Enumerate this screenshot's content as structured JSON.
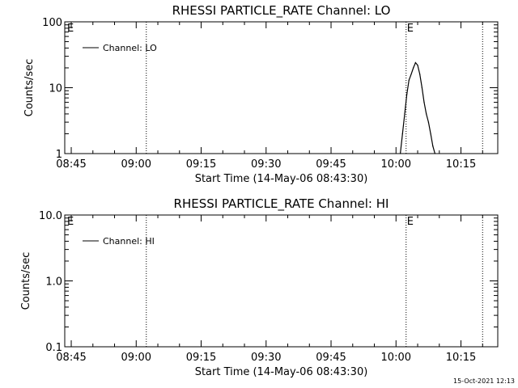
{
  "timestamp": "15-Oct-2021 12:13",
  "chart_data": [
    {
      "type": "line",
      "title": "RHESSI PARTICLE_RATE Channel: LO",
      "xlabel": "Start Time (14-May-06 08:43:30)",
      "ylabel": "Counts/sec",
      "y_scale": "log",
      "ylim": [
        1,
        100
      ],
      "yticks": [
        1,
        10,
        100
      ],
      "ytick_labels": [
        "1",
        "10",
        "100"
      ],
      "xlim": [
        "08:43:30",
        "10:23:30"
      ],
      "xticks": [
        "08:45",
        "09:00",
        "09:15",
        "09:30",
        "09:45",
        "10:00",
        "10:15"
      ],
      "xtick_labels": [
        "08:45",
        "09:00",
        "09:15",
        "09:30",
        "09:45",
        "10:00",
        "10:15"
      ],
      "grid": false,
      "legend": "top-left",
      "series": [
        {
          "name": "Channel: LO",
          "color": "#000000",
          "x": [
            "10:01:00",
            "10:01:30",
            "10:02:00",
            "10:02:30",
            "10:03:00",
            "10:03:30",
            "10:04:00",
            "10:04:30",
            "10:05:00",
            "10:05:30",
            "10:06:00",
            "10:06:30",
            "10:07:00",
            "10:07:30",
            "10:08:00",
            "10:08:30",
            "10:09:00"
          ],
          "values": [
            1,
            2,
            4,
            8,
            13,
            16,
            20,
            24,
            22,
            16,
            10,
            6,
            4,
            3,
            2,
            1.3,
            1
          ]
        }
      ],
      "markers": [
        {
          "x": "09:02:20",
          "label": "",
          "style": "dotted"
        },
        {
          "x": "10:02:20",
          "label": "E",
          "style": "dotted"
        },
        {
          "x": "10:20:00",
          "label": "",
          "style": "dotted"
        }
      ],
      "corner_label": "E"
    },
    {
      "type": "line",
      "title": "RHESSI PARTICLE_RATE Channel: HI",
      "xlabel": "Start Time (14-May-06 08:43:30)",
      "ylabel": "Counts/sec",
      "y_scale": "log",
      "ylim": [
        0.1,
        10
      ],
      "yticks": [
        0.1,
        1,
        10
      ],
      "ytick_labels": [
        "0.1",
        "1.0",
        "10.0"
      ],
      "xlim": [
        "08:43:30",
        "10:23:30"
      ],
      "xticks": [
        "08:45",
        "09:00",
        "09:15",
        "09:30",
        "09:45",
        "10:00",
        "10:15"
      ],
      "xtick_labels": [
        "08:45",
        "09:00",
        "09:15",
        "09:30",
        "09:45",
        "10:00",
        "10:15"
      ],
      "grid": false,
      "legend": "top-left",
      "series": [
        {
          "name": "Channel: HI",
          "color": "#000000",
          "x": [],
          "values": []
        }
      ],
      "markers": [
        {
          "x": "09:02:20",
          "label": "",
          "style": "dotted"
        },
        {
          "x": "10:02:20",
          "label": "E",
          "style": "dotted"
        },
        {
          "x": "10:20:00",
          "label": "",
          "style": "dotted"
        }
      ],
      "corner_label": "E"
    }
  ]
}
